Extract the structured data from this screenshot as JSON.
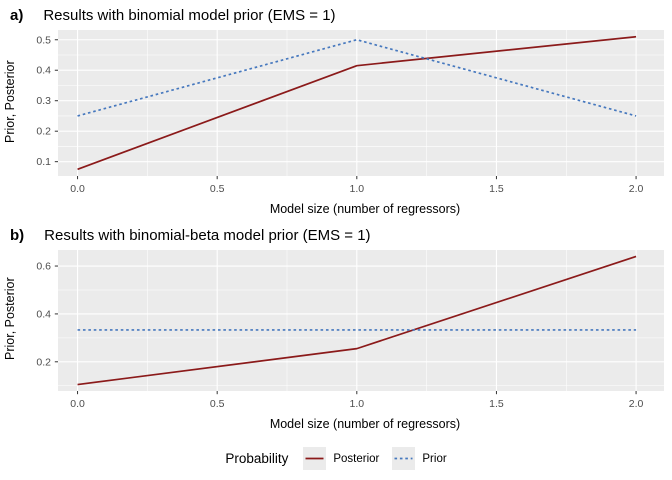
{
  "style": {
    "panel_bg": "#EBEBEB",
    "grid_color": "#FFFFFF",
    "tick_mark_color": "#333333",
    "tick_text_color": "#4D4D4D",
    "posterior_color": "#8B1A1A",
    "prior_color": "#4678BE",
    "legend_key_bg": "#EBEBEB"
  },
  "chart_data": [
    {
      "type": "line",
      "panel_label": "a)",
      "title": "Results with binomial model prior (EMS = 1)",
      "xlabel": "Model size (number of regressors)",
      "ylabel": "Prior, Posterior",
      "x": [
        0,
        1,
        2
      ],
      "series": [
        {
          "name": "Posterior",
          "linetype": "solid",
          "color": "#8B1A1A",
          "values": [
            0.075,
            0.415,
            0.51
          ]
        },
        {
          "name": "Prior",
          "linetype": "dashed",
          "color": "#4678BE",
          "values": [
            0.25,
            0.5,
            0.25
          ]
        }
      ],
      "xlim": [
        -0.07,
        2.1
      ],
      "ylim": [
        0.053,
        0.532
      ],
      "xticks": [
        0,
        0.5,
        1,
        1.5,
        2
      ],
      "xtick_labels": [
        "0.0",
        "0.5",
        "1.0",
        "1.5",
        "2.0"
      ],
      "yticks": [
        0.1,
        0.2,
        0.3,
        0.4,
        0.5
      ],
      "ytick_labels": [
        "0.1",
        "0.2",
        "0.3",
        "0.4",
        "0.5"
      ],
      "grid": true,
      "legend_position": "shared-bottom"
    },
    {
      "type": "line",
      "panel_label": "b)",
      "title": "Results with binomial-beta model prior (EMS = 1)",
      "xlabel": "Model size (number of regressors)",
      "ylabel": "Prior, Posterior",
      "x": [
        0,
        1,
        2
      ],
      "series": [
        {
          "name": "Posterior",
          "linetype": "solid",
          "color": "#8B1A1A",
          "values": [
            0.105,
            0.255,
            0.64
          ]
        },
        {
          "name": "Prior",
          "linetype": "dashed",
          "color": "#4678BE",
          "values": [
            0.333,
            0.333,
            0.333
          ]
        }
      ],
      "xlim": [
        -0.07,
        2.1
      ],
      "ylim": [
        0.078,
        0.667
      ],
      "xticks": [
        0,
        0.5,
        1,
        1.5,
        2
      ],
      "xtick_labels": [
        "0.0",
        "0.5",
        "1.0",
        "1.5",
        "2.0"
      ],
      "yticks": [
        0.2,
        0.4,
        0.6
      ],
      "ytick_labels": [
        "0.2",
        "0.4",
        "0.6"
      ],
      "grid": true,
      "legend_position": "shared-bottom"
    }
  ],
  "legend": {
    "title": "Probability",
    "entries": [
      {
        "label": "Posterior",
        "linetype": "solid",
        "color": "#8B1A1A"
      },
      {
        "label": "Prior",
        "linetype": "dashed",
        "color": "#4678BE"
      }
    ]
  }
}
